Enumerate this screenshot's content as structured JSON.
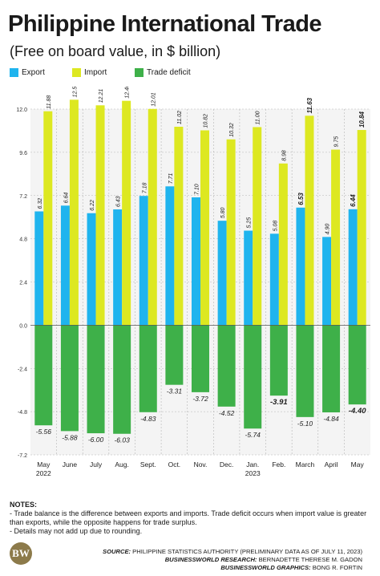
{
  "header": {
    "title": "Philippine International Trade",
    "subtitle": "(Free on board value, in $ billion)"
  },
  "legend": [
    {
      "label": "Export",
      "color": "#1fb4ee"
    },
    {
      "label": "Import",
      "color": "#dde821"
    },
    {
      "label": "Trade deficit",
      "color": "#3eb049"
    }
  ],
  "chart_data": {
    "type": "bar",
    "categories": [
      [
        "May",
        "2022"
      ],
      [
        "June"
      ],
      [
        "July"
      ],
      [
        "Aug."
      ],
      [
        "Sept."
      ],
      [
        "Oct."
      ],
      [
        "Nov."
      ],
      [
        "Dec."
      ],
      [
        "Jan.",
        "2023"
      ],
      [
        "Feb."
      ],
      [
        "March"
      ],
      [
        "April"
      ],
      [
        "May"
      ]
    ],
    "series": [
      {
        "name": "Export",
        "color": "#1fb4ee",
        "values": [
          6.32,
          6.64,
          6.22,
          6.43,
          7.18,
          7.71,
          7.1,
          5.8,
          5.25,
          5.08,
          6.53,
          4.9,
          6.44
        ],
        "labels": [
          "6.32",
          "6.64",
          "6.22",
          "6.43",
          "7.18",
          "7.71",
          "7.10",
          "5.80",
          "5.25",
          "5.08",
          "6.53",
          "4.90",
          "6.44"
        ]
      },
      {
        "name": "Import",
        "color": "#dde821",
        "values": [
          11.88,
          12.52,
          12.21,
          12.46,
          12.01,
          11.02,
          10.82,
          10.32,
          11.0,
          8.98,
          11.63,
          9.75,
          10.84
        ],
        "labels": [
          "11.88",
          "12.52",
          "12.21",
          "12.46",
          "12.01",
          "11.02",
          "10.82",
          "10.32",
          "11.00",
          "8.98",
          "11.63",
          "9.75",
          "10.84"
        ]
      },
      {
        "name": "Trade deficit",
        "color": "#3eb049",
        "values": [
          -5.56,
          -5.88,
          -6.0,
          -6.03,
          -4.83,
          -3.31,
          -3.72,
          -4.52,
          -5.74,
          -3.91,
          -5.1,
          -4.84,
          -4.4
        ],
        "labels": [
          "-5.56",
          "-5.88",
          "-6.00",
          "-6.03",
          "-4.83",
          "-3.31",
          "-3.72",
          "-4.52",
          "-5.74",
          "-3.91",
          "-5.10",
          "-4.84",
          "-4.40"
        ]
      }
    ],
    "bold_labels": [
      "6.53",
      "11.63",
      "6.44",
      "10.84",
      "-3.91",
      "-4.40"
    ],
    "yticks": [
      "12.0",
      "9.6",
      "7.2",
      "4.8",
      "2.4",
      "0.0",
      "-2.4",
      "-4.8",
      "-7.2"
    ],
    "ylim": [
      -7.2,
      12.0
    ],
    "grid": true,
    "title": "Philippine International Trade",
    "xlabel": "",
    "ylabel": ""
  },
  "notes": {
    "heading": "NOTES:",
    "lines": [
      "- Trade balance is the difference between exports and imports. Trade deficit occurs when import value is greater than exports, while the opposite happens for trade surplus.",
      "- Details may not add up due to rounding."
    ]
  },
  "footer": {
    "source_label": "SOURCE:",
    "source_text": "PHILIPPINE STATISTICS AUTHORITY (PRELIMINARY DATA AS OF JULY 11, 2023)",
    "research_label": "BUSINESSWORLD RESEARCH:",
    "research_text": "BERNADETTE THERESE M. GADON",
    "graphics_label": "BUSINESSWORLD GRAPHICS:",
    "graphics_text": "BONG R. FORTIN",
    "logo_text": "BW"
  }
}
